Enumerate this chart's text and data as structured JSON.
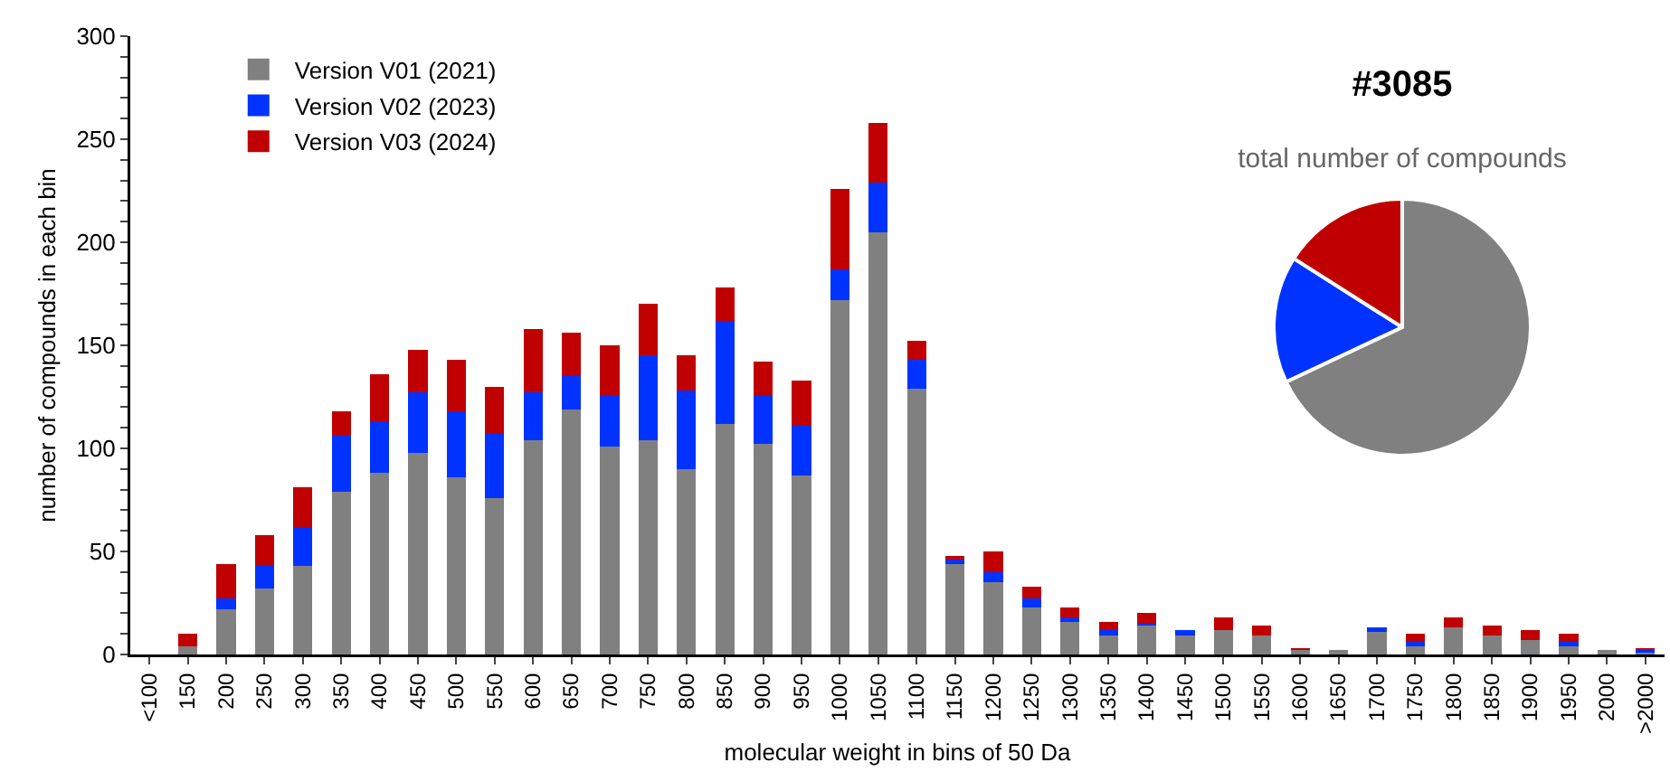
{
  "chart_data": [
    {
      "type": "bar",
      "stacked": true,
      "xlabel": "molecular weight in bins of 50 Da",
      "ylabel": "number of compounds in each bin",
      "categories": [
        "<100",
        "150",
        "200",
        "250",
        "300",
        "350",
        "400",
        "450",
        "500",
        "550",
        "600",
        "650",
        "700",
        "750",
        "800",
        "850",
        "900",
        "950",
        "1000",
        "1050",
        "1100",
        "1150",
        "1200",
        "1250",
        "1300",
        "1350",
        "1400",
        "1450",
        "1500",
        "1550",
        "1600",
        "1650",
        "1700",
        "1750",
        "1800",
        "1850",
        "1900",
        "1950",
        "2000",
        ">2000"
      ],
      "series": [
        {
          "name": "Version V01 (2021)",
          "color": "#808080",
          "values": [
            0,
            4,
            22,
            32,
            43,
            79,
            88,
            98,
            86,
            76,
            104,
            119,
            101,
            104,
            90,
            112,
            102,
            87,
            172,
            205,
            129,
            44,
            35,
            23,
            16,
            9,
            14,
            9,
            12,
            9,
            2,
            2,
            11,
            4,
            13,
            9,
            7,
            4,
            2,
            1
          ]
        },
        {
          "name": "Version V02 (2023)",
          "color": "#0033ff",
          "values": [
            0,
            0,
            5,
            11,
            19,
            27,
            25,
            29,
            32,
            31,
            23,
            16,
            25,
            41,
            38,
            50,
            24,
            24,
            15,
            24,
            14,
            2,
            5,
            4,
            2,
            3,
            1,
            3,
            0,
            0,
            0,
            0,
            2,
            2,
            0,
            0,
            0,
            2,
            0,
            1
          ]
        },
        {
          "name": "Version V03 (2024)",
          "color": "#c00000",
          "values": [
            0,
            6,
            17,
            15,
            19,
            12,
            23,
            21,
            25,
            23,
            31,
            21,
            24,
            25,
            17,
            16,
            16,
            22,
            39,
            29,
            9,
            2,
            10,
            6,
            5,
            4,
            5,
            0,
            6,
            5,
            1,
            0,
            0,
            4,
            5,
            5,
            5,
            4,
            0,
            1
          ]
        }
      ],
      "ylim": [
        0,
        300
      ],
      "yticks": [
        0,
        {
          "value": 10,
          "label": null
        },
        {
          "value": 20,
          "label": null
        },
        {
          "value": 30,
          "label": null
        },
        {
          "value": 40,
          "label": null
        },
        50,
        {
          "value": 60,
          "label": null
        },
        {
          "value": 70,
          "label": null
        },
        {
          "value": 80,
          "label": null
        },
        {
          "value": 90,
          "label": null
        },
        100,
        {
          "value": 110,
          "label": null
        },
        {
          "value": 120,
          "label": null
        },
        {
          "value": 130,
          "label": null
        },
        {
          "value": 140,
          "label": null
        },
        150,
        {
          "value": 160,
          "label": null
        },
        {
          "value": 170,
          "label": null
        },
        {
          "value": 180,
          "label": null
        },
        {
          "value": 190,
          "label": null
        },
        200,
        {
          "value": 210,
          "label": null
        },
        {
          "value": 220,
          "label": null
        },
        {
          "value": 230,
          "label": null
        },
        {
          "value": 240,
          "label": null
        },
        250,
        {
          "value": 260,
          "label": null
        },
        {
          "value": 270,
          "label": null
        },
        {
          "value": 280,
          "label": null
        },
        {
          "value": 290,
          "label": null
        },
        300
      ],
      "grid": false,
      "legend": "top left"
    },
    {
      "type": "pie",
      "title": "#3085",
      "subtitle": "total number of compounds",
      "categories": [
        null,
        null,
        null
      ],
      "values": [
        68,
        16,
        16
      ],
      "colors": [
        "#808080",
        "#0033ff",
        "#c00000"
      ],
      "legend": false
    }
  ]
}
